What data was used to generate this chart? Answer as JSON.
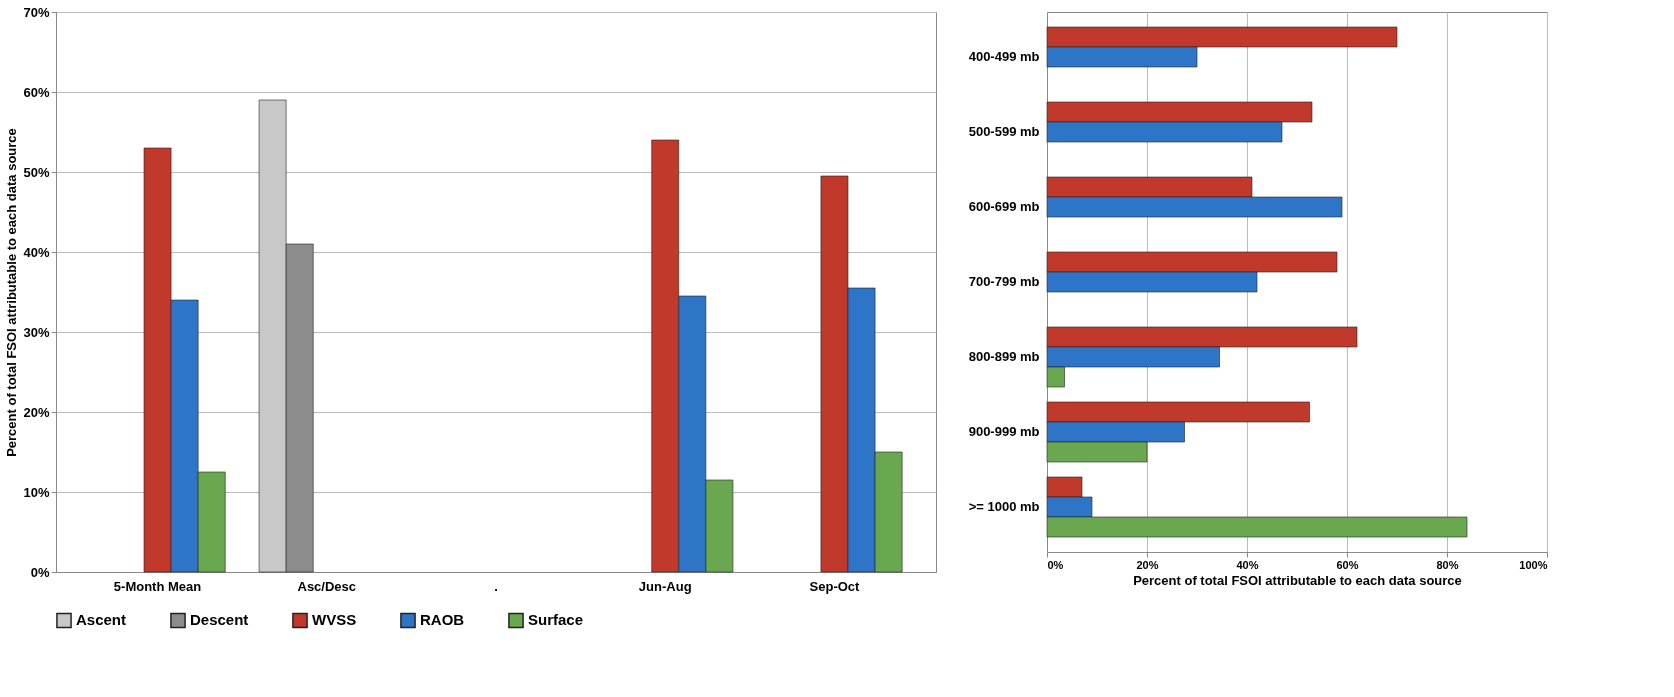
{
  "chart_data": [
    {
      "type": "bar",
      "ylabel": "Percent of total FSOI attributable to each data source",
      "categories": [
        "5-Month Mean",
        "Asc/Desc",
        ".",
        "Jun-Aug",
        "Sep-Oct"
      ],
      "series": [
        {
          "name": "Ascent",
          "color": "#c8c8c8",
          "values": [
            null,
            59,
            null,
            null,
            null
          ]
        },
        {
          "name": "Descent",
          "color": "#8c8c8c",
          "values": [
            null,
            41,
            null,
            null,
            null
          ]
        },
        {
          "name": "WVSS",
          "color": "#c0392b",
          "values": [
            53,
            null,
            null,
            54,
            49.5
          ]
        },
        {
          "name": "RAOB",
          "color": "#2e75c8",
          "values": [
            34,
            null,
            null,
            34.5,
            35.5
          ]
        },
        {
          "name": "Surface",
          "color": "#6aa84f",
          "values": [
            12.5,
            null,
            null,
            11.5,
            15
          ]
        }
      ],
      "ylim": [
        0,
        70
      ],
      "yticks": [
        {
          "value": 0,
          "label": "0%"
        },
        {
          "value": 10,
          "label": "10%"
        },
        {
          "value": 20,
          "label": "20%"
        },
        {
          "value": 30,
          "label": "30%"
        },
        {
          "value": 40,
          "label": "40%"
        },
        {
          "value": 50,
          "label": "50%"
        },
        {
          "value": 60,
          "label": "60%"
        },
        {
          "value": 70,
          "label": "70%"
        }
      ],
      "grid": "y",
      "legend": "bottom"
    },
    {
      "type": "bar",
      "orientation": "horizontal",
      "xlabel": "Percent of total FSOI attributable to each data source",
      "categories": [
        "400-499 mb",
        "500-599 mb",
        "600-699 mb",
        "700-799 mb",
        "800-899 mb",
        "900-999 mb",
        ">= 1000 mb"
      ],
      "series": [
        {
          "name": "WVSS",
          "color": "#c0392b",
          "values": [
            70,
            53,
            41,
            58,
            62,
            52.5,
            7
          ]
        },
        {
          "name": "RAOB",
          "color": "#2e75c8",
          "values": [
            30,
            47,
            59,
            42,
            34.5,
            27.5,
            9
          ]
        },
        {
          "name": "Surface",
          "color": "#6aa84f",
          "values": [
            null,
            null,
            null,
            null,
            3.5,
            20,
            84
          ]
        }
      ],
      "xlim": [
        0,
        100
      ],
      "xticks": [
        {
          "value": 0,
          "label": "0%"
        },
        {
          "value": 20,
          "label": "20%"
        },
        {
          "value": 40,
          "label": "40%"
        },
        {
          "value": 60,
          "label": "60%"
        },
        {
          "value": 80,
          "label": "80%"
        },
        {
          "value": 100,
          "label": "100%"
        }
      ],
      "grid": "x",
      "legend": "bottom"
    }
  ]
}
